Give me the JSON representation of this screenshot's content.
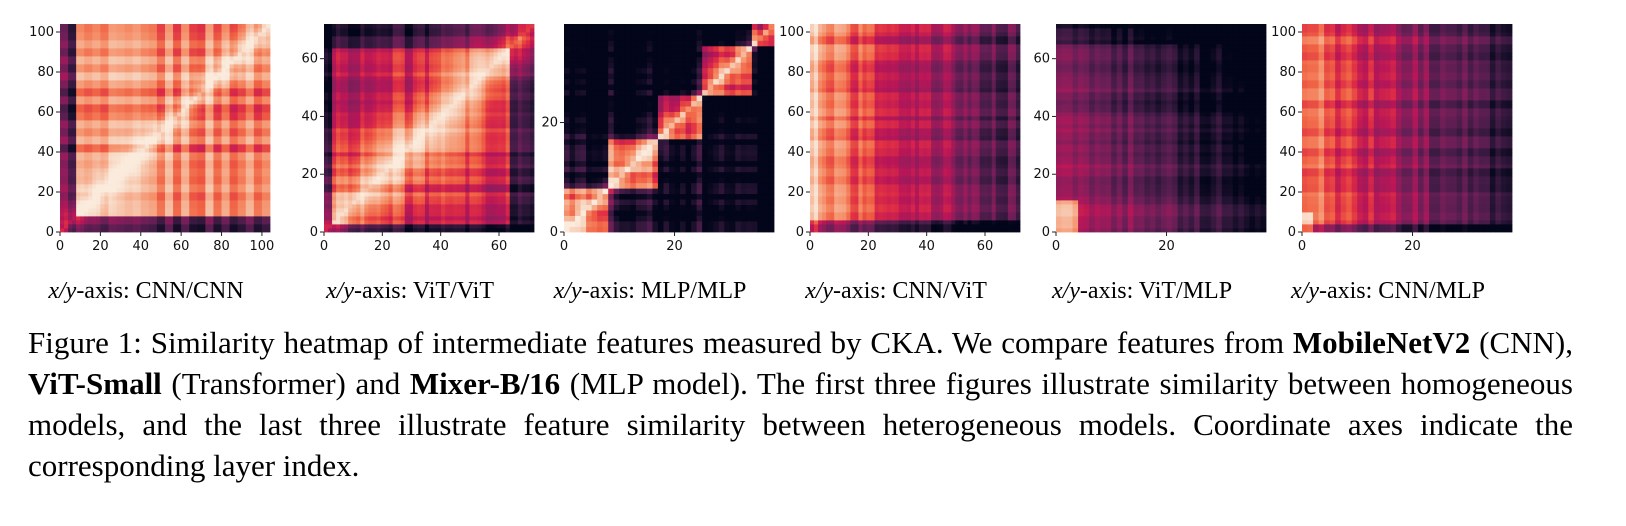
{
  "chart_data": [
    {
      "type": "heatmap",
      "xlabel": "x/y-axis: CNN/CNN",
      "x_range": [
        0,
        104
      ],
      "y_range": [
        0,
        104
      ],
      "xticks": [
        0,
        20,
        40,
        60,
        80,
        100
      ],
      "yticks": [
        0,
        20,
        40,
        60,
        80,
        100
      ],
      "colormap": "rocket",
      "pattern": "bright diagonal, broad high-similarity blocks from layer 8 upward, dark low band near 0"
    },
    {
      "type": "heatmap",
      "xlabel": "x/y-axis: ViT/ViT",
      "x_range": [
        0,
        72
      ],
      "y_range": [
        0,
        72
      ],
      "xticks": [
        0,
        20,
        40,
        60
      ],
      "yticks": [
        0,
        20,
        40,
        60
      ],
      "colormap": "rocket",
      "pattern": "bright diagonal, smooth block structure, dark band at top and bottom"
    },
    {
      "type": "heatmap",
      "xlabel": "x/y-axis: MLP/MLP",
      "x_range": [
        0,
        38
      ],
      "y_range": [
        0,
        38
      ],
      "xticks": [
        0,
        20
      ],
      "yticks": [
        0,
        20
      ],
      "colormap": "rocket",
      "pattern": "bright block-diagonal structure, mostly dark off-diagonal"
    },
    {
      "type": "heatmap",
      "xlabel": "x/y-axis: CNN/ViT",
      "x_range": [
        0,
        72
      ],
      "y_range": [
        0,
        104
      ],
      "xticks": [
        0,
        20,
        40,
        60
      ],
      "yticks": [
        0,
        20,
        40,
        60,
        80,
        100
      ],
      "colormap": "rocket",
      "pattern": "moderate similarity in early ViT layers fading to dark in late layers"
    },
    {
      "type": "heatmap",
      "xlabel": "x/y-axis: ViT/MLP",
      "x_range": [
        0,
        38
      ],
      "y_range": [
        0,
        72
      ],
      "xticks": [
        0,
        20
      ],
      "yticks": [
        0,
        20,
        40,
        60
      ],
      "colormap": "rocket",
      "pattern": "mostly dark, brighter only at low layer indices"
    },
    {
      "type": "heatmap",
      "xlabel": "x/y-axis: CNN/MLP",
      "x_range": [
        0,
        38
      ],
      "y_range": [
        0,
        104
      ],
      "xticks": [
        0,
        20
      ],
      "yticks": [
        0,
        20,
        40,
        60,
        80,
        100
      ],
      "colormap": "rocket",
      "pattern": "moderate similarity in early MLP layers, dark in late layers"
    }
  ],
  "panels": [
    {
      "axis_prefix": "x/y",
      "axis_suffix": "-axis: CNN/CNN"
    },
    {
      "axis_prefix": "x/y",
      "axis_suffix": "-axis: ViT/ViT"
    },
    {
      "axis_prefix": "x/y",
      "axis_suffix": "-axis: MLP/MLP"
    },
    {
      "axis_prefix": "x/y",
      "axis_suffix": "-axis: CNN/ViT"
    },
    {
      "axis_prefix": "x/y",
      "axis_suffix": "-axis: ViT/MLP"
    },
    {
      "axis_prefix": "x/y",
      "axis_suffix": "-axis: CNN/MLP"
    }
  ],
  "caption": {
    "label": "Figure 1:",
    "text_1": " Similarity heatmap of intermediate features measured by CKA. We compare features from ",
    "model_1": "MobileNetV2",
    "text_2": " (CNN), ",
    "model_2": "ViT-Small",
    "text_3": " (Transformer) and ",
    "model_3": "Mixer-B/16",
    "text_4": " (MLP model). The first three figures illustrate similarity between homogeneous models, and the last three illustrate feature similarity between heterogeneous models. Coordinate axes indicate the corresponding layer index."
  },
  "colors": {
    "colormap": [
      "#03051a",
      "#221331",
      "#451c47",
      "#6a1f56",
      "#921c5b",
      "#b91657",
      "#dd2c45",
      "#f06043",
      "#f5916b",
      "#f6b89b",
      "#f8dbc8",
      "#faebdd"
    ]
  }
}
